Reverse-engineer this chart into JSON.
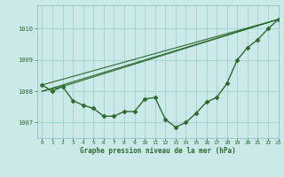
{
  "main_line": {
    "x": [
      0,
      1,
      2,
      3,
      4,
      5,
      6,
      7,
      8,
      9,
      10,
      11,
      12,
      13,
      14,
      15,
      16,
      17,
      18,
      19,
      20,
      21,
      22,
      23
    ],
    "y": [
      1008.2,
      1008.0,
      1008.15,
      1007.7,
      1007.55,
      1007.45,
      1007.2,
      1007.2,
      1007.35,
      1007.35,
      1007.75,
      1007.8,
      1007.1,
      1006.85,
      1007.0,
      1007.3,
      1007.65,
      1007.8,
      1008.25,
      1009.0,
      1009.4,
      1009.65,
      1010.0,
      1010.3
    ],
    "color": "#2d6a2d",
    "marker": "D",
    "markersize": 2.5,
    "linewidth": 1.0
  },
  "straight_line1": {
    "x": [
      0,
      23
    ],
    "y": [
      1008.2,
      1010.3
    ],
    "color": "#2d6a2d",
    "linewidth": 0.8
  },
  "straight_line2": {
    "x": [
      0,
      23
    ],
    "y": [
      1008.0,
      1010.3
    ],
    "color": "#2d6a2d",
    "linewidth": 0.8
  },
  "straight_line3": {
    "x": [
      0,
      2,
      23
    ],
    "y": [
      1008.0,
      1008.15,
      1010.3
    ],
    "color": "#2d6a2d",
    "linewidth": 0.8
  },
  "ylim": [
    1006.5,
    1010.75
  ],
  "xlim": [
    -0.5,
    23
  ],
  "yticks": [
    1007,
    1008,
    1009,
    1010
  ],
  "xticks": [
    0,
    1,
    2,
    3,
    4,
    5,
    6,
    7,
    8,
    9,
    10,
    11,
    12,
    13,
    14,
    15,
    16,
    17,
    18,
    19,
    20,
    21,
    22,
    23
  ],
  "xlabel": "Graphe pression niveau de la mer (hPa)",
  "bg_color": "#cce9e9",
  "line_color": "#2d6a2d",
  "grid_color": "#99cccc",
  "tick_color": "#2d6a2d",
  "label_color": "#2d6a2d",
  "spine_color": "#88bbbb"
}
